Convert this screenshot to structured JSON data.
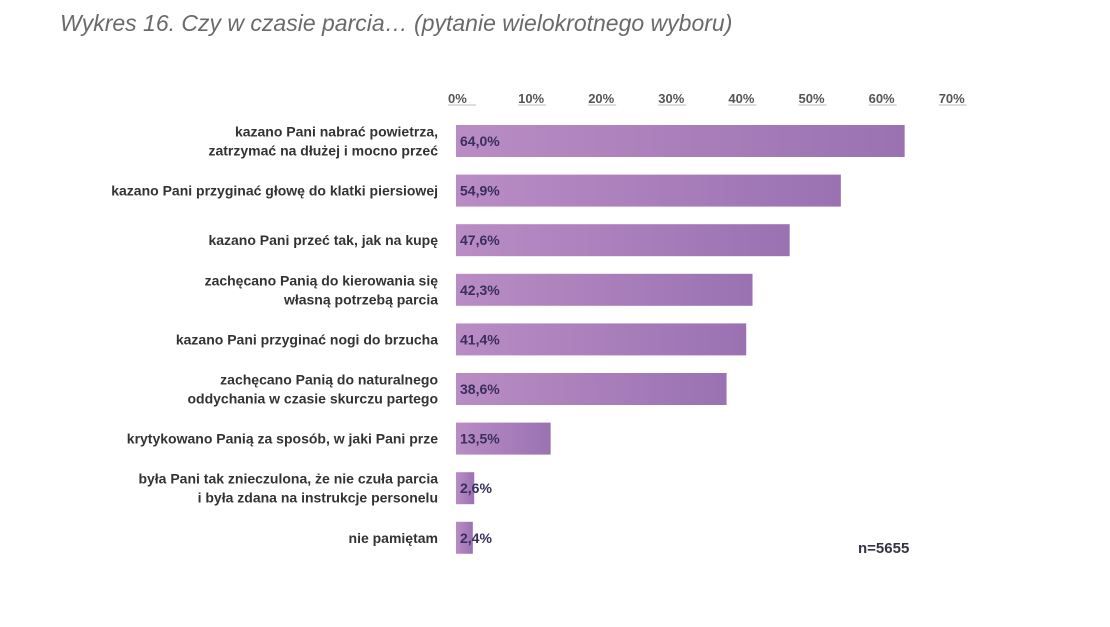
{
  "title": "Wykres 16. Czy w czasie parcia…  (pytanie wielokrotnego wyboru)",
  "note": "n=5655",
  "colors": {
    "bar_start": "#b98cc4",
    "bar_end": "#9a72b2",
    "value_text": "#3a2f5c",
    "category_text": "#333333",
    "tick_text": "#555555"
  },
  "chart_data": {
    "type": "bar",
    "orientation": "horizontal",
    "categories": [
      [
        "kazano Pani nabrać powietrza,",
        "zatrzymać na dłużej i mocno przeć"
      ],
      [
        "kazano Pani przyginać głowę do klatki piersiowej"
      ],
      [
        "kazano Pani przeć tak, jak na kupę"
      ],
      [
        "zachęcano Panią do kierowania się",
        "własną potrzebą parcia"
      ],
      [
        "kazano Pani przyginać nogi do brzucha"
      ],
      [
        "zachęcano Panią do naturalnego",
        "oddychania w czasie skurczu partego"
      ],
      [
        "krytykowano Panią za sposób, w jaki Pani prze"
      ],
      [
        "była Pani tak znieczulona, że nie czuła parcia",
        "i była zdana na instrukcje personelu"
      ],
      [
        "nie pamiętam"
      ]
    ],
    "values": [
      64.0,
      54.9,
      47.6,
      42.3,
      41.4,
      38.6,
      13.5,
      2.6,
      2.4
    ],
    "value_labels": [
      "64,0%",
      "54,9%",
      "47,6%",
      "42,3%",
      "41,4%",
      "38,6%",
      "13,5%",
      "2,6%",
      "2,4%"
    ],
    "xlim": [
      0,
      70
    ],
    "ticks": [
      0,
      10,
      20,
      30,
      40,
      50,
      60,
      70
    ],
    "tick_labels": [
      "0%",
      "10%",
      "20%",
      "30%",
      "40%",
      "50%",
      "60%",
      "70%"
    ],
    "axis_position": "top",
    "grid": false,
    "legend": "none"
  }
}
